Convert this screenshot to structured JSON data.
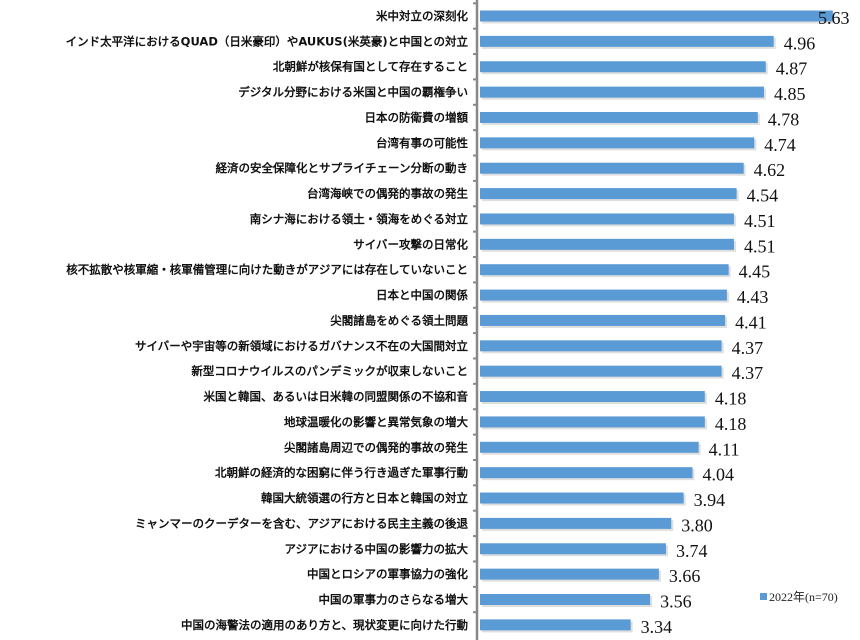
{
  "chart_data": {
    "type": "bar",
    "orientation": "horizontal",
    "title": "",
    "xlabel": "",
    "ylabel": "",
    "grid": false,
    "legend_position": "bottom-right",
    "bar_color": "#5b9bd5",
    "categories": [
      "米中対立の深刻化",
      "インド太平洋におけるQUAD（日米豪印）やAUKUS(米英豪)と中国との対立",
      "北朝鮮が核保有国として存在すること",
      "デジタル分野における米国と中国の覇権争い",
      "日本の防衛費の増額",
      "台湾有事の可能性",
      "経済の安全保障化とサプライチェーン分断の動き",
      "台湾海峡での偶発的事故の発生",
      "南シナ海における領土・領海をめぐる対立",
      "サイバー攻撃の日常化",
      "核不拡散や核軍縮・核軍備管理に向けた動きがアジアには存在していないこと",
      "日本と中国の関係",
      "尖閣諸島をめぐる領土問題",
      "サイバーや宇宙等の新領域におけるガバナンス不在の大国間対立",
      "新型コロナウイルスのパンデミックが収束しないこと",
      "米国と韓国、あるいは日米韓の同盟関係の不協和音",
      "地球温暖化の影響と異常気象の増大",
      "尖閣諸島周辺での偶発的事故の発生",
      "北朝鮮の経済的な困窮に伴う行き過ぎた軍事行動",
      "韓国大統領選の行方と日本と韓国の対立",
      "ミャンマーのクーデターを含む、アジアにおける民主主義の後退",
      "アジアにおける中国の影響力の拡大",
      "中国とロシアの軍事協力の強化",
      "中国の軍事力のさらなる増大",
      "中国の海警法の適用のあり方と、現状変更に向けた行動"
    ],
    "series": [
      {
        "name": "2022年(n=70)",
        "values": [
          5.63,
          4.96,
          4.87,
          4.85,
          4.78,
          4.74,
          4.62,
          4.54,
          4.51,
          4.51,
          4.45,
          4.43,
          4.41,
          4.37,
          4.37,
          4.18,
          4.18,
          4.11,
          4.04,
          3.94,
          3.8,
          3.74,
          3.66,
          3.56,
          3.34
        ],
        "labels": [
          "5.63",
          "4.96",
          "4.87",
          "4.85",
          "4.78",
          "4.74",
          "4.62",
          "4.54",
          "4.51",
          "4.51",
          "4.45",
          "4.43",
          "4.41",
          "4.37",
          "4.37",
          "4.18",
          "4.18",
          "4.11",
          "4.04",
          "3.94",
          "3.80",
          "3.74",
          "3.66",
          "3.56",
          "3.34"
        ]
      }
    ]
  }
}
